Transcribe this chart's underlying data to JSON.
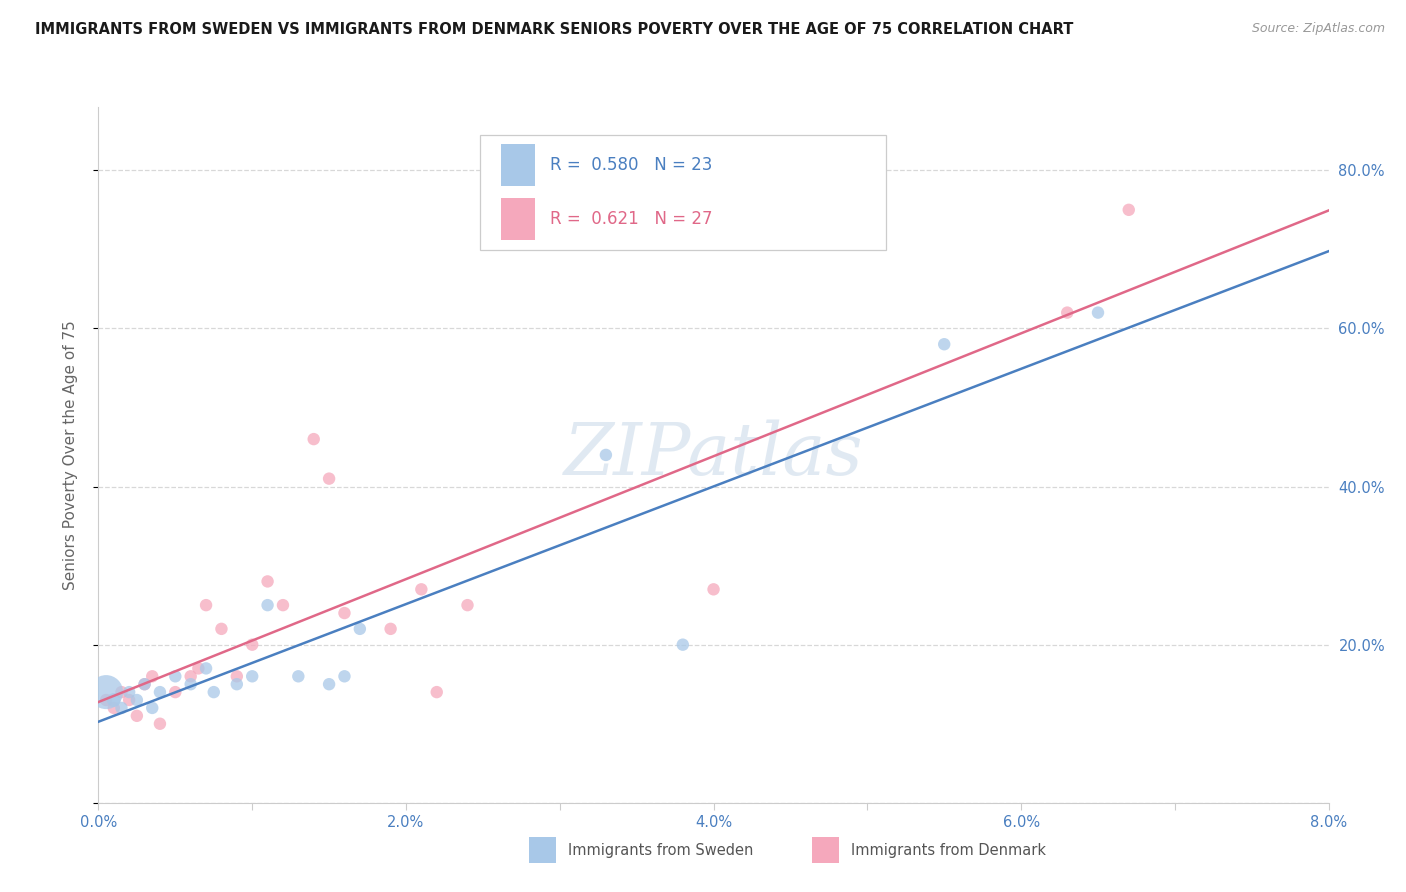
{
  "title": "IMMIGRANTS FROM SWEDEN VS IMMIGRANTS FROM DENMARK SENIORS POVERTY OVER THE AGE OF 75 CORRELATION CHART",
  "source": "Source: ZipAtlas.com",
  "ylabel": "Seniors Poverty Over the Age of 75",
  "xlim": [
    0.0,
    0.08
  ],
  "ylim": [
    0.0,
    0.88
  ],
  "yticks": [
    0.0,
    0.2,
    0.4,
    0.6,
    0.8
  ],
  "xticks": [
    0.0,
    0.01,
    0.02,
    0.03,
    0.04,
    0.05,
    0.06,
    0.07,
    0.08
  ],
  "xtick_labels": [
    "0.0%",
    "",
    "2.0%",
    "",
    "4.0%",
    "",
    "6.0%",
    "",
    "8.0%"
  ],
  "ytick_labels_right": [
    "",
    "20.0%",
    "40.0%",
    "60.0%",
    "80.0%"
  ],
  "sweden_color": "#a8c8e8",
  "denmark_color": "#f5a8bc",
  "sweden_line_color": "#4a7fc0",
  "denmark_line_color": "#e06888",
  "sweden_R": 0.58,
  "sweden_N": 23,
  "denmark_R": 0.621,
  "denmark_N": 27,
  "watermark": "ZIPatlas",
  "sweden_x": [
    0.0005,
    0.001,
    0.0015,
    0.002,
    0.0025,
    0.003,
    0.0035,
    0.004,
    0.005,
    0.006,
    0.007,
    0.0075,
    0.009,
    0.01,
    0.011,
    0.013,
    0.015,
    0.016,
    0.017,
    0.033,
    0.038,
    0.055,
    0.065
  ],
  "sweden_y": [
    0.14,
    0.13,
    0.12,
    0.14,
    0.13,
    0.15,
    0.12,
    0.14,
    0.16,
    0.15,
    0.17,
    0.14,
    0.15,
    0.16,
    0.25,
    0.16,
    0.15,
    0.16,
    0.22,
    0.44,
    0.2,
    0.58,
    0.62
  ],
  "sweden_s": [
    600,
    100,
    80,
    80,
    80,
    80,
    80,
    80,
    80,
    80,
    80,
    80,
    80,
    80,
    80,
    80,
    80,
    80,
    80,
    80,
    80,
    80,
    80
  ],
  "denmark_x": [
    0.0005,
    0.001,
    0.0015,
    0.002,
    0.0025,
    0.003,
    0.0035,
    0.004,
    0.005,
    0.006,
    0.0065,
    0.007,
    0.008,
    0.009,
    0.01,
    0.011,
    0.012,
    0.014,
    0.015,
    0.016,
    0.019,
    0.021,
    0.022,
    0.024,
    0.04,
    0.063,
    0.067
  ],
  "denmark_y": [
    0.13,
    0.12,
    0.14,
    0.13,
    0.11,
    0.15,
    0.16,
    0.1,
    0.14,
    0.16,
    0.17,
    0.25,
    0.22,
    0.16,
    0.2,
    0.28,
    0.25,
    0.46,
    0.41,
    0.24,
    0.22,
    0.27,
    0.14,
    0.25,
    0.27,
    0.62,
    0.75
  ],
  "denmark_s": [
    80,
    80,
    80,
    80,
    80,
    80,
    80,
    80,
    80,
    80,
    80,
    80,
    80,
    80,
    80,
    80,
    80,
    80,
    80,
    80,
    80,
    80,
    80,
    80,
    80,
    80,
    80
  ],
  "legend_label_sweden": "Immigrants from Sweden",
  "legend_label_denmark": "Immigrants from Denmark",
  "background_color": "#ffffff",
  "grid_color": "#d8d8d8",
  "label_color": "#4a7fc0",
  "axis_color": "#cccccc"
}
